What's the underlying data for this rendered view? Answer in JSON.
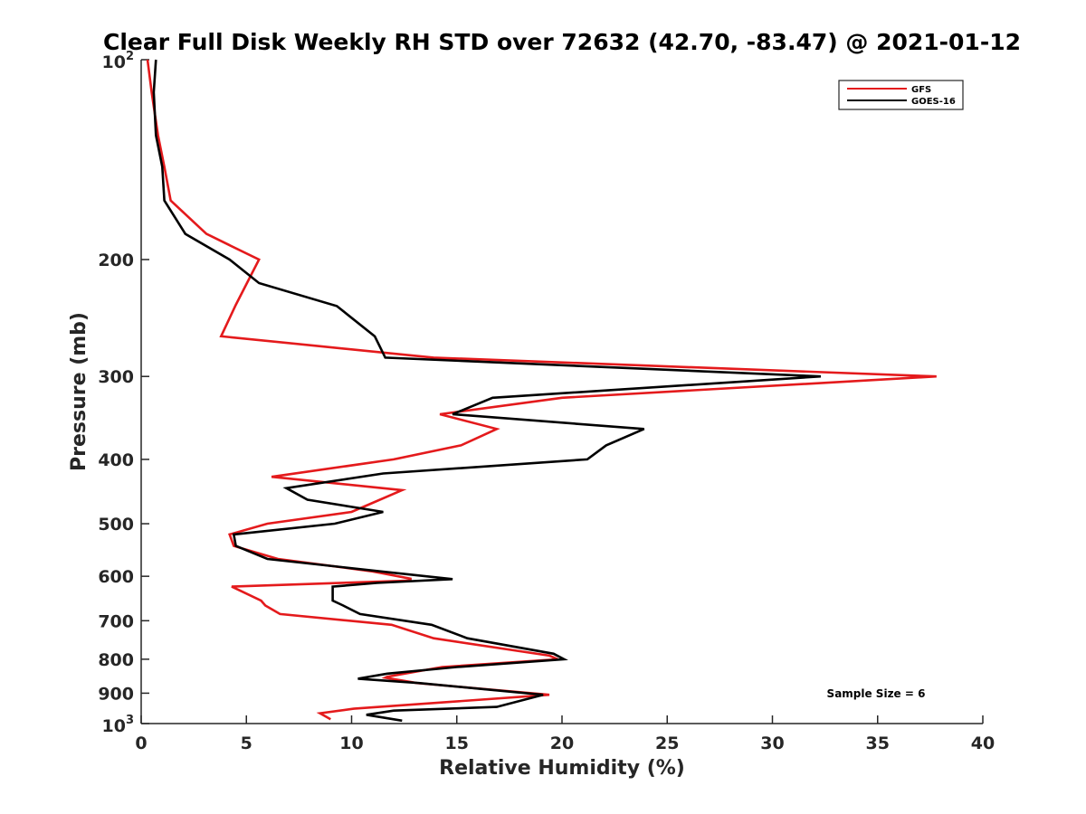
{
  "chart_data": {
    "type": "line",
    "title": "Clear Full Disk Weekly RH STD over 72632 (42.70, -83.47) @ 2021-01-12",
    "xlabel": "Relative Humidity (%)",
    "ylabel": "Pressure (mb)",
    "xlim": [
      0,
      40
    ],
    "ylim": [
      100,
      1000
    ],
    "y_scale": "log",
    "y_reversed": true,
    "grid": false,
    "legend_position": "top-right",
    "x_ticks": [
      0,
      5,
      10,
      15,
      20,
      25,
      30,
      35,
      40
    ],
    "y_ticks": [
      {
        "value": 100,
        "base": "10",
        "exp": "2"
      },
      {
        "value": 200,
        "label": "200"
      },
      {
        "value": 300,
        "label": "300"
      },
      {
        "value": 400,
        "label": "400"
      },
      {
        "value": 500,
        "label": "500"
      },
      {
        "value": 600,
        "label": "600"
      },
      {
        "value": 700,
        "label": "700"
      },
      {
        "value": 800,
        "label": "800"
      },
      {
        "value": 900,
        "label": "900"
      },
      {
        "value": 1000,
        "base": "10",
        "exp": "3"
      }
    ],
    "annotation": "Sample Size = 6",
    "series": [
      {
        "name": "GFS",
        "color": "#e41a1c",
        "points": [
          [
            0.3,
            100
          ],
          [
            0.5,
            112
          ],
          [
            0.8,
            130
          ],
          [
            1.1,
            145
          ],
          [
            1.4,
            163
          ],
          [
            3.1,
            183
          ],
          [
            5.6,
            200
          ],
          [
            4.5,
            234
          ],
          [
            3.8,
            261
          ],
          [
            13.9,
            281
          ],
          [
            37.8,
            300
          ],
          [
            20.0,
            323
          ],
          [
            14.2,
            342
          ],
          [
            16.9,
            360
          ],
          [
            15.2,
            381
          ],
          [
            12.0,
            400
          ],
          [
            6.2,
            425
          ],
          [
            12.4,
            445
          ],
          [
            10.8,
            468
          ],
          [
            10.0,
            480
          ],
          [
            6.0,
            500
          ],
          [
            4.2,
            519
          ],
          [
            4.4,
            540
          ],
          [
            6.5,
            565
          ],
          [
            11.0,
            590
          ],
          [
            12.8,
            605
          ],
          [
            12.8,
            609
          ],
          [
            4.3,
            622
          ],
          [
            5.7,
            653
          ],
          [
            5.9,
            664
          ],
          [
            6.6,
            684
          ],
          [
            11.9,
            710
          ],
          [
            13.9,
            744
          ],
          [
            19.4,
            790
          ],
          [
            19.8,
            800
          ],
          [
            14.3,
            822
          ],
          [
            11.7,
            850
          ],
          [
            11.6,
            853
          ],
          [
            13.1,
            869
          ],
          [
            19.4,
            905
          ],
          [
            10.1,
            950
          ],
          [
            8.5,
            965
          ],
          [
            9.0,
            985
          ]
        ]
      },
      {
        "name": "GOES-16",
        "color": "#000000",
        "points": [
          [
            0.7,
            100
          ],
          [
            0.6,
            112
          ],
          [
            0.7,
            130
          ],
          [
            1.0,
            145
          ],
          [
            1.1,
            163
          ],
          [
            2.1,
            183
          ],
          [
            4.2,
            200
          ],
          [
            5.6,
            217
          ],
          [
            9.3,
            235
          ],
          [
            11.1,
            261
          ],
          [
            11.6,
            281
          ],
          [
            32.3,
            300
          ],
          [
            16.7,
            323
          ],
          [
            14.8,
            342
          ],
          [
            23.9,
            360
          ],
          [
            22.1,
            381
          ],
          [
            21.2,
            400
          ],
          [
            11.5,
            420
          ],
          [
            6.9,
            442
          ],
          [
            7.9,
            460
          ],
          [
            11.5,
            480
          ],
          [
            9.2,
            500
          ],
          [
            4.4,
            519
          ],
          [
            4.5,
            540
          ],
          [
            6.0,
            565
          ],
          [
            11.4,
            590
          ],
          [
            14.8,
            606
          ],
          [
            11.2,
            614
          ],
          [
            9.1,
            622
          ],
          [
            9.1,
            653
          ],
          [
            9.6,
            664
          ],
          [
            10.4,
            684
          ],
          [
            13.8,
            710
          ],
          [
            15.5,
            744
          ],
          [
            19.6,
            785
          ],
          [
            20.1,
            800
          ],
          [
            15.0,
            822
          ],
          [
            11.7,
            841
          ],
          [
            10.3,
            856
          ],
          [
            13.2,
            869
          ],
          [
            19.1,
            905
          ],
          [
            16.9,
            944
          ],
          [
            12.0,
            956
          ],
          [
            10.7,
            970
          ],
          [
            12.4,
            990
          ]
        ]
      }
    ]
  }
}
